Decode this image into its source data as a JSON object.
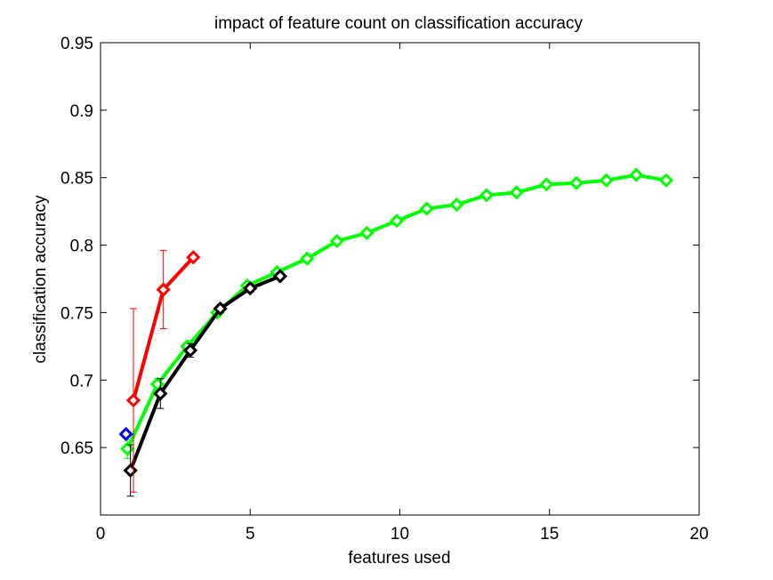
{
  "chart_data": {
    "type": "line",
    "title": "impact of feature count on classification accuracy",
    "xlabel": "features used",
    "ylabel": "classification accuracy",
    "xlim": [
      0,
      20
    ],
    "ylim": [
      0.6,
      0.95
    ],
    "xticks": [
      0,
      5,
      10,
      15,
      20
    ],
    "xtick_labels": [
      "0",
      "5",
      "10",
      "15",
      "20"
    ],
    "yticks": [
      0.65,
      0.7,
      0.75,
      0.8,
      0.85,
      0.9,
      0.95
    ],
    "ytick_labels": [
      "0.65",
      "0.7",
      "0.75",
      "0.8",
      "0.85",
      "0.9",
      "0.95"
    ],
    "grid": false,
    "legend": "none",
    "series": [
      {
        "color": "#00ff00",
        "marker": "diamond",
        "x": [
          0.9,
          1.9,
          2.9,
          3.9,
          4.9,
          5.9,
          6.9,
          7.9,
          8.9,
          9.9,
          10.9,
          11.9,
          12.9,
          13.9,
          14.9,
          15.9,
          16.9,
          17.9,
          18.9
        ],
        "y": [
          0.649,
          0.697,
          0.725,
          0.75,
          0.77,
          0.78,
          0.79,
          0.803,
          0.809,
          0.818,
          0.827,
          0.83,
          0.837,
          0.839,
          0.845,
          0.846,
          0.848,
          0.852,
          0.848
        ],
        "error": [
          0.007,
          0.004,
          0.003,
          0.003,
          0.002,
          0.002,
          0.002,
          0.002,
          0.002,
          0.002,
          0.002,
          0.002,
          0.002,
          0.002,
          0.002,
          0.002,
          0.002,
          0.002,
          0.002
        ]
      },
      {
        "color": "#000000",
        "marker": "diamond",
        "x": [
          1.0,
          2.0,
          3.0,
          4.0,
          5.0,
          6.0
        ],
        "y": [
          0.633,
          0.69,
          0.722,
          0.753,
          0.768,
          0.777
        ],
        "error": [
          0.019,
          0.011,
          0.005,
          0.003,
          0.003,
          0.002
        ]
      },
      {
        "color": "#ff0000",
        "marker": "diamond",
        "x": [
          1.1,
          2.1,
          3.1
        ],
        "y": [
          0.685,
          0.767,
          0.791
        ],
        "error": [
          0.068,
          0.029,
          0.0
        ]
      },
      {
        "color": "#0000ff",
        "marker": "diamond",
        "x": [
          0.85
        ],
        "y": [
          0.66
        ],
        "error": [
          0.0
        ]
      }
    ]
  }
}
